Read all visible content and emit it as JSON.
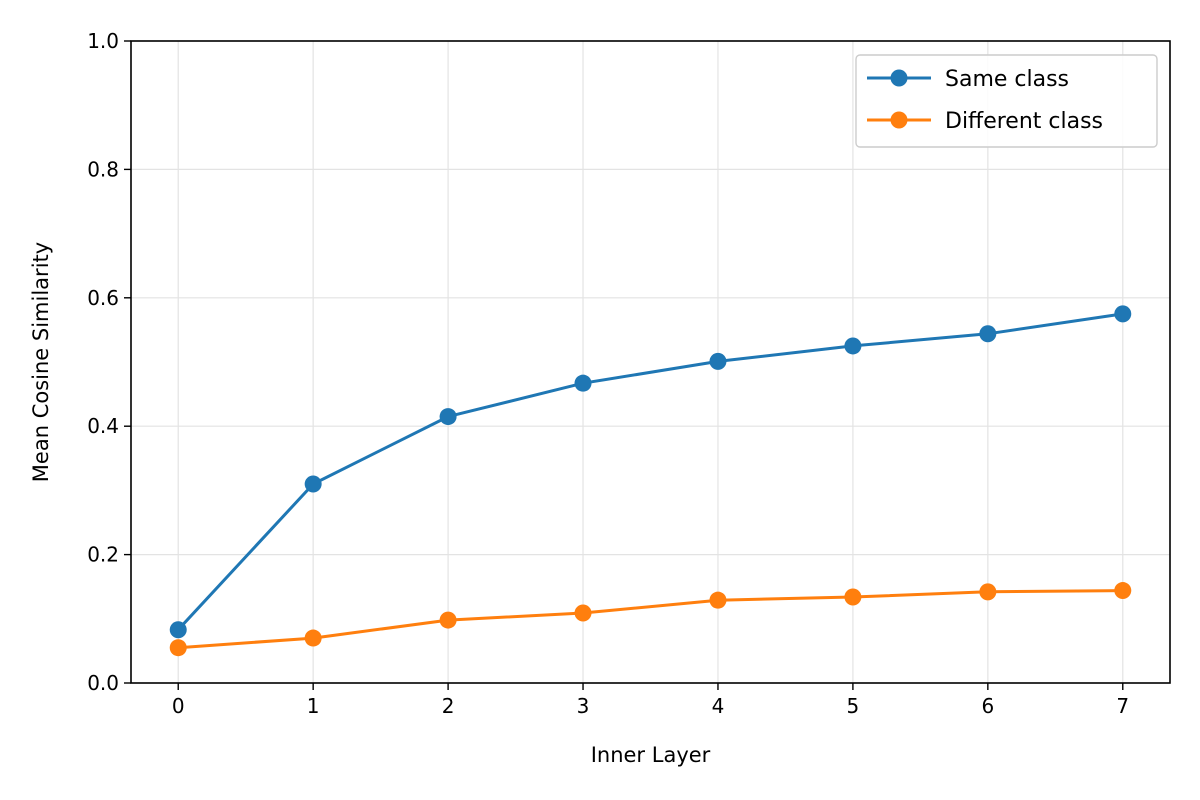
{
  "chart_data": {
    "type": "line",
    "title": "",
    "xlabel": "Inner Layer",
    "ylabel": "Mean Cosine Similarity",
    "x": [
      0,
      1,
      2,
      3,
      4,
      5,
      6,
      7
    ],
    "xlim": [
      -0.35,
      7.35
    ],
    "ylim": [
      0.0,
      1.0
    ],
    "xticks": [
      "0",
      "1",
      "2",
      "3",
      "4",
      "5",
      "6",
      "7"
    ],
    "yticks": [
      "0.0",
      "0.2",
      "0.4",
      "0.6",
      "0.8",
      "1.0"
    ],
    "grid": true,
    "legend_position": "top-right",
    "series": [
      {
        "name": "Same class",
        "color": "#1f77b4",
        "marker": "circle",
        "values": [
          0.083,
          0.31,
          0.415,
          0.467,
          0.501,
          0.525,
          0.544,
          0.575
        ]
      },
      {
        "name": "Different class",
        "color": "#ff7f0e",
        "marker": "circle",
        "values": [
          0.055,
          0.07,
          0.098,
          0.109,
          0.129,
          0.134,
          0.142,
          0.144
        ]
      }
    ]
  }
}
